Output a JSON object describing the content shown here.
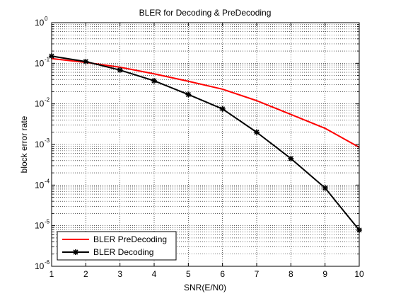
{
  "chart_data": {
    "type": "line",
    "title": "BLER for Decoding & PreDecoding",
    "xlabel": "SNR(E/N0)",
    "ylabel": "block error rate",
    "xlim": [
      1,
      10
    ],
    "ylim": [
      1e-06,
      1
    ],
    "yscale": "log",
    "grid": true,
    "legend_position": "bottom-left",
    "x_ticks": [
      "1",
      "2",
      "3",
      "4",
      "5",
      "6",
      "7",
      "8",
      "9",
      "10"
    ],
    "y_ticks": [
      {
        "base": "10",
        "exp": "-6"
      },
      {
        "base": "10",
        "exp": "-5"
      },
      {
        "base": "10",
        "exp": "-4"
      },
      {
        "base": "10",
        "exp": "-3"
      },
      {
        "base": "10",
        "exp": "-2"
      },
      {
        "base": "10",
        "exp": "-1"
      },
      {
        "base": "10",
        "exp": "0"
      }
    ],
    "x": [
      1,
      2,
      3,
      4,
      5,
      6,
      7,
      8,
      9,
      10
    ],
    "series": [
      {
        "name": "BLER PreDecoding",
        "color": "#ff0000",
        "marker": "none",
        "values": [
          0.13,
          0.105,
          0.08,
          0.055,
          0.036,
          0.023,
          0.012,
          0.0055,
          0.0025,
          0.00085
        ]
      },
      {
        "name": "BLER Decoding",
        "color": "#000000",
        "marker": "star",
        "values": [
          0.15,
          0.11,
          0.068,
          0.037,
          0.017,
          0.0075,
          0.002,
          0.00045,
          8.5e-05,
          7.8e-06
        ]
      }
    ]
  }
}
